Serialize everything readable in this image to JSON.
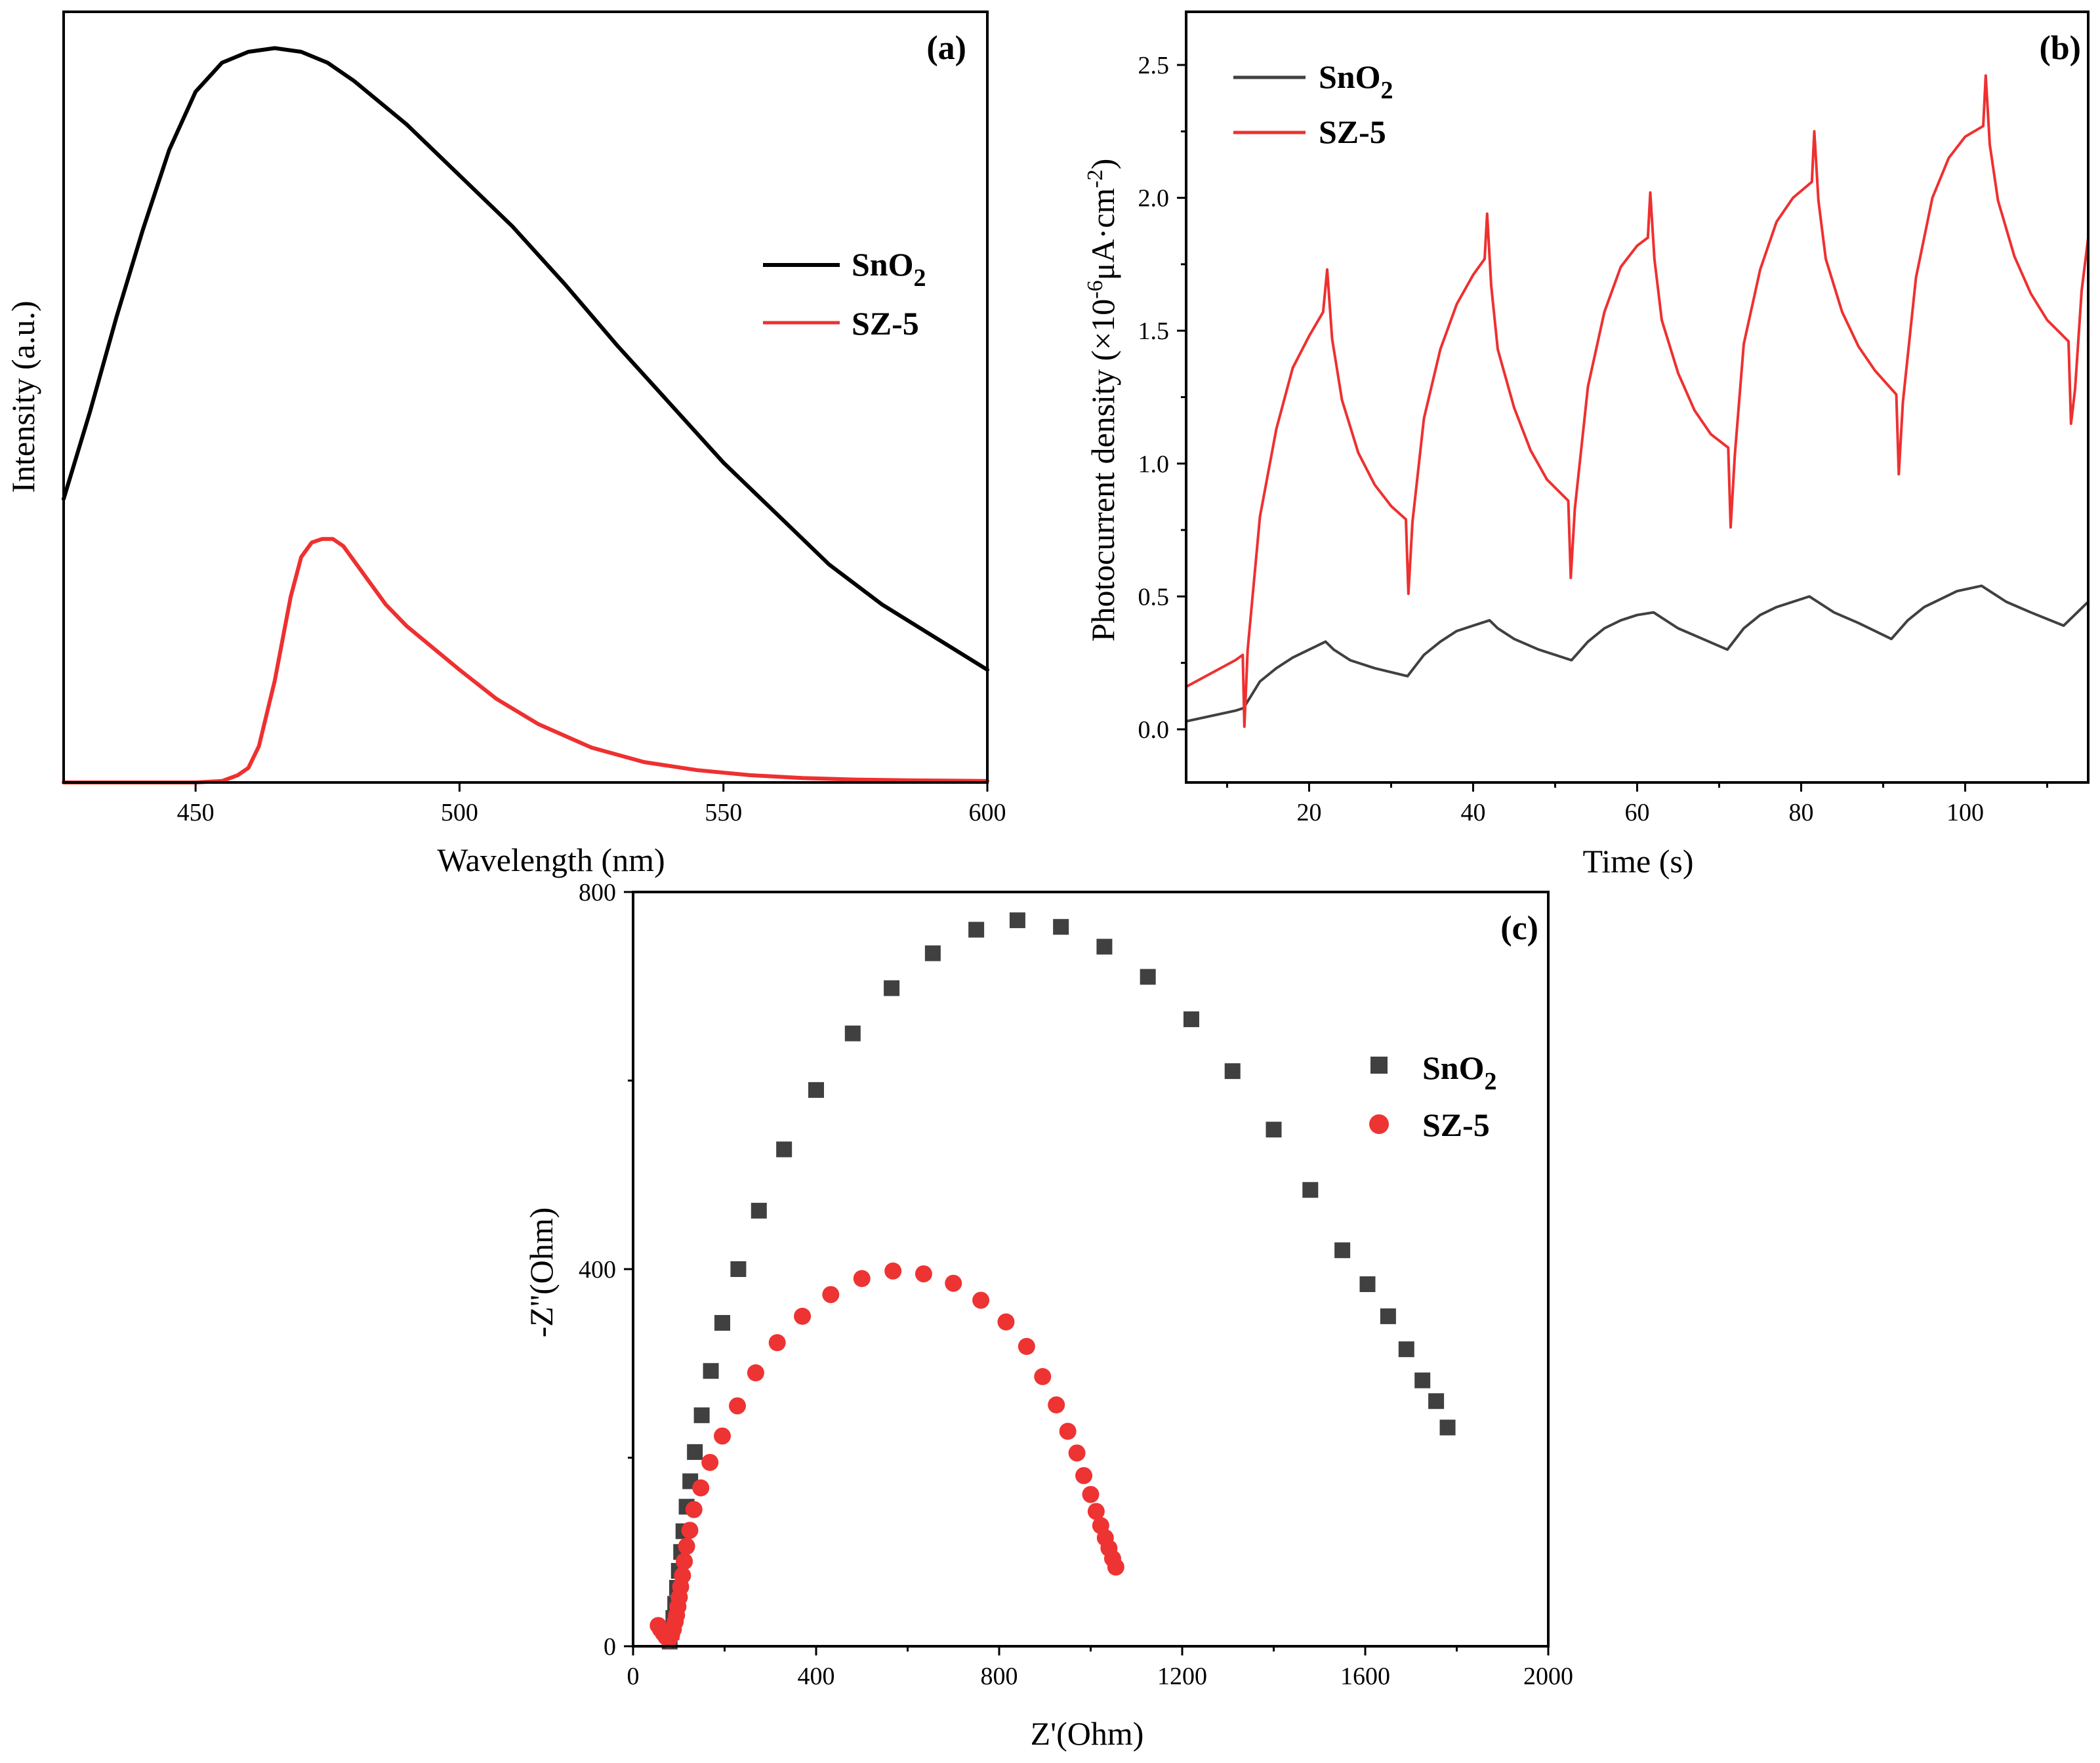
{
  "chart_data": [
    {
      "panel": "(a)",
      "type": "line",
      "xlabel": "Wavelength (nm)",
      "ylabel": "Intensity (a.u.)",
      "xlim": [
        425,
        600
      ],
      "ylim": [
        0,
        1.06
      ],
      "xticks": [
        450,
        500,
        550,
        600
      ],
      "yticks": [],
      "grid": false,
      "legend_position": "center-right",
      "series": [
        {
          "name": "SnO2",
          "name_main": "SnO",
          "name_sub": "2",
          "color": "#000000",
          "x": [
            425,
            430,
            435,
            440,
            445,
            450,
            455,
            460,
            465,
            470,
            475,
            480,
            490,
            500,
            510,
            520,
            530,
            540,
            550,
            560,
            570,
            580,
            590,
            600
          ],
          "y": [
            0.39,
            0.51,
            0.64,
            0.76,
            0.87,
            0.95,
            0.99,
            1.005,
            1.01,
            1.005,
            0.99,
            0.965,
            0.905,
            0.835,
            0.765,
            0.685,
            0.6,
            0.52,
            0.44,
            0.37,
            0.3,
            0.245,
            0.2,
            0.155
          ]
        },
        {
          "name": "SZ-5",
          "color": "#ee3030",
          "x": [
            425,
            440,
            450,
            455,
            458,
            460,
            462,
            465,
            468,
            470,
            472,
            474,
            476,
            478,
            480,
            483,
            486,
            490,
            495,
            500,
            507,
            515,
            525,
            535,
            545,
            555,
            565,
            575,
            585,
            600
          ],
          "y": [
            0.0,
            0.0,
            0.0,
            0.002,
            0.01,
            0.02,
            0.05,
            0.14,
            0.255,
            0.31,
            0.33,
            0.335,
            0.335,
            0.325,
            0.305,
            0.275,
            0.245,
            0.215,
            0.185,
            0.155,
            0.115,
            0.08,
            0.048,
            0.028,
            0.017,
            0.01,
            0.006,
            0.004,
            0.003,
            0.002
          ]
        }
      ]
    },
    {
      "panel": "(b)",
      "type": "line",
      "xlabel": "Time (s)",
      "ylabel": "Photocurrent density (×10",
      "ylabel_sup": "-6",
      "ylabel_mid": "μA·cm",
      "ylabel_sup2": "-2",
      "ylabel_end": ")",
      "xlim": [
        5,
        115
      ],
      "ylim": [
        -0.2,
        2.7
      ],
      "xticks": [
        20,
        40,
        60,
        80,
        100
      ],
      "yticks": [
        0.0,
        0.5,
        1.0,
        1.5,
        2.0,
        2.5
      ],
      "ytick_labels": [
        "0.0",
        "0.5",
        "1.0",
        "1.5",
        "2.0",
        "2.5"
      ],
      "grid": false,
      "legend_position": "top-left",
      "series": [
        {
          "name": "SnO2",
          "name_main": "SnO",
          "name_sub": "2",
          "color": "#404040",
          "x": [
            5,
            8,
            11,
            12,
            14,
            16,
            18,
            20,
            22,
            23,
            25,
            28,
            32,
            34,
            36,
            38,
            40,
            42,
            43,
            45,
            48,
            52,
            54,
            56,
            58,
            60,
            62,
            63,
            65,
            68,
            71,
            73,
            75,
            77,
            79,
            81,
            82,
            84,
            87,
            91,
            93,
            95,
            97,
            99,
            102,
            103,
            105,
            108,
            112,
            115
          ],
          "y": [
            0.03,
            0.05,
            0.07,
            0.08,
            0.18,
            0.23,
            0.27,
            0.3,
            0.33,
            0.3,
            0.26,
            0.23,
            0.2,
            0.28,
            0.33,
            0.37,
            0.39,
            0.41,
            0.38,
            0.34,
            0.3,
            0.26,
            0.33,
            0.38,
            0.41,
            0.43,
            0.44,
            0.42,
            0.38,
            0.34,
            0.3,
            0.38,
            0.43,
            0.46,
            0.48,
            0.5,
            0.48,
            0.44,
            0.4,
            0.34,
            0.41,
            0.46,
            0.49,
            0.52,
            0.54,
            0.52,
            0.48,
            0.44,
            0.39,
            0.48
          ]
        },
        {
          "name": "SZ-5",
          "color": "#ee3030",
          "x": [
            5,
            8,
            11,
            11.9,
            12.1,
            12.5,
            14,
            16,
            18,
            20,
            21.7,
            22.2,
            22.8,
            24,
            26,
            28,
            30,
            31.8,
            32.1,
            32.6,
            34,
            36,
            38,
            40,
            41.4,
            41.7,
            42.2,
            43,
            45,
            47,
            49,
            51.6,
            51.9,
            52.4,
            54,
            56,
            58,
            60,
            61.3,
            61.6,
            62.1,
            63,
            65,
            67,
            69,
            71.1,
            71.4,
            71.9,
            73,
            75,
            77,
            79,
            81.3,
            81.6,
            82.1,
            83,
            85,
            87,
            89,
            91.6,
            91.9,
            92.4,
            94,
            96,
            98,
            100,
            102.2,
            102.5,
            103,
            104,
            106,
            108,
            110,
            112.6,
            112.9,
            113.4,
            114.2,
            115
          ],
          "y": [
            0.16,
            0.21,
            0.26,
            0.28,
            0.01,
            0.3,
            0.8,
            1.13,
            1.36,
            1.48,
            1.57,
            1.73,
            1.47,
            1.24,
            1.04,
            0.92,
            0.84,
            0.79,
            0.51,
            0.78,
            1.17,
            1.43,
            1.6,
            1.71,
            1.77,
            1.94,
            1.67,
            1.43,
            1.21,
            1.05,
            0.94,
            0.86,
            0.57,
            0.83,
            1.29,
            1.57,
            1.74,
            1.82,
            1.85,
            2.02,
            1.77,
            1.54,
            1.34,
            1.2,
            1.11,
            1.06,
            0.76,
            1.03,
            1.45,
            1.73,
            1.91,
            2.0,
            2.06,
            2.25,
            1.99,
            1.77,
            1.57,
            1.44,
            1.35,
            1.26,
            0.96,
            1.23,
            1.7,
            2.0,
            2.15,
            2.23,
            2.27,
            2.46,
            2.2,
            1.99,
            1.78,
            1.64,
            1.54,
            1.46,
            1.15,
            1.28,
            1.65,
            1.85
          ]
        }
      ]
    },
    {
      "panel": "(c)",
      "type": "scatter",
      "xlabel": "Z'(Ohm)",
      "ylabel": "-Z''(Ohm)",
      "xlim": [
        0,
        2000
      ],
      "ylim": [
        0,
        800
      ],
      "xticks": [
        0,
        400,
        800,
        1200,
        1600,
        2000
      ],
      "yticks": [
        0,
        400,
        800
      ],
      "grid": false,
      "legend_position": "right",
      "series": [
        {
          "name": "SnO2",
          "name_main": "SnO",
          "name_sub": "2",
          "marker": "square",
          "color": "#404040",
          "x": [
            80,
            84,
            88,
            92,
            96,
            100,
            105,
            110,
            117,
            125,
            135,
            150,
            170,
            195,
            230,
            275,
            330,
            400,
            480,
            565,
            655,
            750,
            840,
            935,
            1030,
            1125,
            1220,
            1310,
            1400,
            1480,
            1550,
            1605,
            1650,
            1690,
            1725,
            1755,
            1780
          ],
          "y": [
            5,
            15,
            30,
            45,
            62,
            80,
            100,
            122,
            148,
            175,
            206,
            245,
            292,
            343,
            400,
            462,
            527,
            590,
            650,
            698,
            735,
            760,
            770,
            763,
            742,
            710,
            665,
            610,
            548,
            484,
            420,
            384,
            350,
            315,
            282,
            260,
            232
          ]
        },
        {
          "name": "SZ-5",
          "marker": "circle",
          "color": "#ee3333",
          "x": [
            55,
            60,
            66,
            72,
            78,
            84,
            88,
            92,
            95,
            98,
            101,
            104,
            108,
            112,
            117,
            124,
            133,
            148,
            168,
            195,
            228,
            268,
            315,
            370,
            432,
            500,
            568,
            635,
            700,
            760,
            815,
            860,
            895,
            925,
            950,
            970,
            985,
            1000,
            1012,
            1022,
            1032,
            1040,
            1048,
            1055
          ],
          "y": [
            22,
            18,
            14,
            10,
            7,
            12,
            18,
            26,
            33,
            42,
            52,
            63,
            75,
            90,
            106,
            123,
            145,
            168,
            195,
            223,
            255,
            290,
            322,
            350,
            373,
            390,
            398,
            395,
            385,
            367,
            344,
            318,
            286,
            256,
            228,
            205,
            181,
            161,
            143,
            128,
            115,
            104,
            93,
            84
          ]
        }
      ]
    }
  ]
}
